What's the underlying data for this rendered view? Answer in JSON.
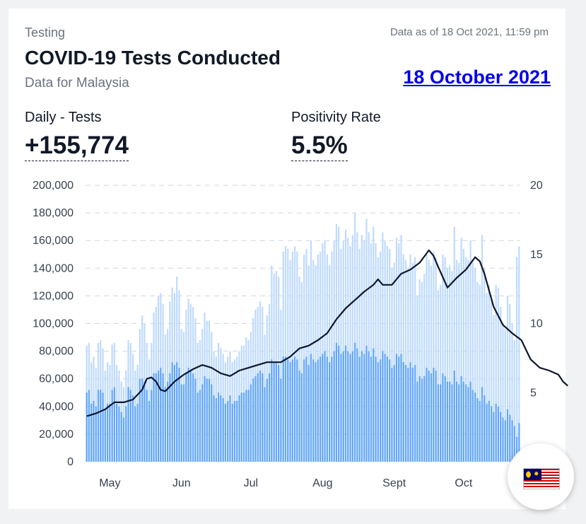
{
  "header": {
    "category": "Testing",
    "as_of": "Data as of 18 Oct 2021, 11:59 pm",
    "title": "COVID-19 Tests Conducted",
    "subtitle": "Data for Malaysia",
    "date_link": "18 October 2021"
  },
  "stats": {
    "daily_label": "Daily - Tests",
    "daily_value": "+155,774",
    "positivity_label": "Positivity Rate",
    "positivity_value": "5.5%"
  },
  "colors": {
    "total_tests": "#bfdbfe",
    "pcr_tests": "#60a5fa",
    "positivity_line": "#0f172a",
    "grid": "#d1d5db"
  },
  "chart_data": {
    "type": "bar",
    "left_axis": {
      "ylim": [
        0,
        200000
      ],
      "ticks": [
        "200,000",
        "180,000",
        "160,000",
        "140,000",
        "120,000",
        "100,000",
        "80,000",
        "60,000",
        "40,000",
        "20,000",
        "0"
      ]
    },
    "right_axis": {
      "ylim": [
        0,
        20
      ],
      "ticks": [
        "20",
        "15",
        "10",
        "5"
      ],
      "ticks_values": [
        20,
        15,
        10,
        5
      ]
    },
    "x_ticks": [
      {
        "label": "May",
        "day": 10
      },
      {
        "label": "Jun",
        "day": 41
      },
      {
        "label": "Jul",
        "day": 71
      },
      {
        "label": "Aug",
        "day": 102
      },
      {
        "label": "Sept",
        "day": 133
      },
      {
        "label": "Oct",
        "day": 163
      }
    ],
    "start_date": "2021-04-20",
    "end_date": "2021-10-18",
    "grid": true,
    "series_totals": [
      84000,
      86000,
      72000,
      76000,
      68000,
      86000,
      88000,
      82000,
      66000,
      72000,
      70000,
      85000,
      86000,
      70000,
      66000,
      58000,
      54000,
      66000,
      88000,
      86000,
      78000,
      66000,
      70000,
      96000,
      106000,
      100000,
      86000,
      74000,
      86000,
      108000,
      112000,
      120000,
      122000,
      114000,
      92000,
      96000,
      116000,
      126000,
      122000,
      134000,
      124000,
      96000,
      94000,
      110000,
      118000,
      114000,
      112000,
      104000,
      86000,
      88000,
      96000,
      108000,
      102000,
      102000,
      94000,
      80000,
      76000,
      86000,
      82000,
      78000,
      72000,
      76000,
      80000,
      72000,
      74000,
      76000,
      80000,
      84000,
      84000,
      90000,
      88000,
      94000,
      104000,
      110000,
      112000,
      116000,
      112000,
      92000,
      106000,
      114000,
      142000,
      136000,
      138000,
      134000,
      110000,
      152000,
      156000,
      154000,
      146000,
      152000,
      156000,
      152000,
      134000,
      130000,
      150000,
      154000,
      142000,
      160000,
      146000,
      142000,
      150000,
      152000,
      158000,
      160000,
      150000,
      142000,
      152000,
      160000,
      172000,
      170000,
      154000,
      160000,
      168000,
      162000,
      156000,
      164000,
      180000,
      166000,
      154000,
      164000,
      160000,
      176000,
      166000,
      158000,
      170000,
      158000,
      148000,
      152000,
      166000,
      160000,
      156000,
      154000,
      140000,
      144000,
      162000,
      158000,
      164000,
      150000,
      146000,
      140000,
      150000,
      144000,
      148000,
      120000,
      132000,
      130000,
      136000,
      150000,
      146000,
      142000,
      152000,
      148000,
      124000,
      128000,
      150000,
      148000,
      140000,
      142000,
      138000,
      170000,
      146000,
      144000,
      162000,
      154000,
      148000,
      146000,
      160000,
      144000,
      140000,
      130000,
      128000,
      164000,
      140000,
      122000,
      128000,
      118000,
      106000,
      128000,
      126000,
      112000,
      100000,
      96000,
      120000,
      114000,
      100000,
      88000,
      148000,
      155774
    ],
    "series_pcr": [
      50000,
      52000,
      42000,
      44000,
      40000,
      52000,
      52000,
      50000,
      38000,
      42000,
      42000,
      52000,
      54000,
      42000,
      40000,
      36000,
      32000,
      40000,
      54000,
      52000,
      48000,
      40000,
      42000,
      60000,
      60000,
      58000,
      52000,
      44000,
      52000,
      64000,
      64000,
      66000,
      68000,
      64000,
      54000,
      58000,
      64000,
      72000,
      70000,
      72000,
      68000,
      56000,
      56000,
      64000,
      68000,
      66000,
      64000,
      60000,
      50000,
      52000,
      56000,
      62000,
      60000,
      60000,
      56000,
      48000,
      46000,
      50000,
      48000,
      46000,
      42000,
      44000,
      48000,
      42000,
      44000,
      44000,
      48000,
      50000,
      50000,
      52000,
      52000,
      56000,
      60000,
      62000,
      64000,
      66000,
      64000,
      54000,
      60000,
      64000,
      74000,
      72000,
      72000,
      70000,
      60000,
      76000,
      76000,
      74000,
      72000,
      74000,
      76000,
      74000,
      66000,
      64000,
      74000,
      76000,
      70000,
      78000,
      74000,
      72000,
      74000,
      76000,
      78000,
      80000,
      76000,
      72000,
      76000,
      80000,
      86000,
      84000,
      78000,
      80000,
      84000,
      80000,
      78000,
      80000,
      86000,
      82000,
      76000,
      80000,
      78000,
      84000,
      80000,
      76000,
      82000,
      76000,
      72000,
      74000,
      80000,
      78000,
      76000,
      74000,
      68000,
      70000,
      78000,
      76000,
      78000,
      72000,
      70000,
      68000,
      72000,
      68000,
      70000,
      58000,
      62000,
      60000,
      62000,
      68000,
      66000,
      64000,
      68000,
      66000,
      56000,
      56000,
      64000,
      62000,
      58000,
      58000,
      56000,
      66000,
      58000,
      56000,
      62000,
      58000,
      56000,
      54000,
      58000,
      52000,
      50000,
      46000,
      44000,
      54000,
      48000,
      42000,
      44000,
      40000,
      36000,
      42000,
      40000,
      36000,
      32000,
      30000,
      38000,
      34000,
      30000,
      26000,
      18000,
      28000
    ],
    "positivity_points": [
      [
        0,
        3.3
      ],
      [
        4,
        3.5
      ],
      [
        8,
        3.8
      ],
      [
        12,
        4.3
      ],
      [
        16,
        4.3
      ],
      [
        20,
        4.5
      ],
      [
        24,
        5.2
      ],
      [
        26,
        6.0
      ],
      [
        28,
        6.1
      ],
      [
        30,
        5.8
      ],
      [
        32,
        5.2
      ],
      [
        34,
        5.1
      ],
      [
        38,
        5.8
      ],
      [
        42,
        6.3
      ],
      [
        46,
        6.7
      ],
      [
        50,
        7.0
      ],
      [
        54,
        6.8
      ],
      [
        58,
        6.4
      ],
      [
        62,
        6.2
      ],
      [
        66,
        6.6
      ],
      [
        70,
        6.8
      ],
      [
        74,
        7.0
      ],
      [
        78,
        7.2
      ],
      [
        84,
        7.2
      ],
      [
        88,
        7.6
      ],
      [
        92,
        8.2
      ],
      [
        96,
        8.4
      ],
      [
        100,
        8.8
      ],
      [
        104,
        9.3
      ],
      [
        108,
        10.3
      ],
      [
        112,
        11.1
      ],
      [
        116,
        11.7
      ],
      [
        120,
        12.3
      ],
      [
        124,
        12.8
      ],
      [
        126,
        13.2
      ],
      [
        128,
        12.8
      ],
      [
        132,
        12.8
      ],
      [
        136,
        13.6
      ],
      [
        140,
        13.9
      ],
      [
        144,
        14.4
      ],
      [
        148,
        15.3
      ],
      [
        150,
        14.9
      ],
      [
        152,
        14.1
      ],
      [
        156,
        12.6
      ],
      [
        160,
        13.3
      ],
      [
        164,
        13.9
      ],
      [
        168,
        14.8
      ],
      [
        170,
        14.5
      ],
      [
        172,
        13.6
      ],
      [
        176,
        11.2
      ],
      [
        180,
        9.9
      ],
      [
        184,
        9.3
      ],
      [
        188,
        8.8
      ],
      [
        192,
        7.4
      ],
      [
        196,
        6.8
      ],
      [
        200,
        6.6
      ],
      [
        204,
        6.3
      ],
      [
        206,
        5.8
      ],
      [
        208,
        5.5
      ]
    ]
  }
}
